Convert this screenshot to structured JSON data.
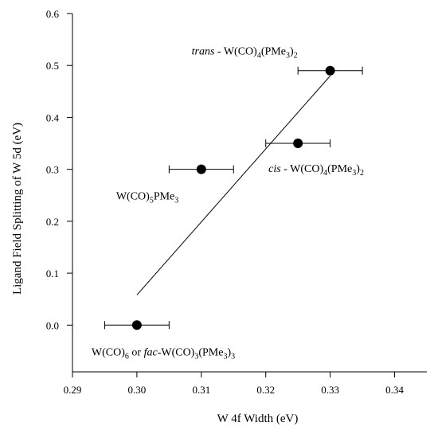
{
  "chart_data": {
    "type": "scatter",
    "xlabel": "W 4f Width (eV)",
    "ylabel": "Ligand Field Splitting of W 5d (eV)",
    "xlim": [
      0.29,
      0.345
    ],
    "ylim": [
      -0.09,
      0.6
    ],
    "xticks": [
      "0.29",
      "0.30",
      "0.31",
      "0.32",
      "0.33",
      "0.34"
    ],
    "yticks": [
      "0.0",
      "0.1",
      "0.2",
      "0.3",
      "0.4",
      "0.5",
      "0.6"
    ],
    "grid": false,
    "points": [
      {
        "x": 0.3,
        "y": 0.0,
        "xerr": 0.005
      },
      {
        "x": 0.31,
        "y": 0.3,
        "xerr": 0.005
      },
      {
        "x": 0.325,
        "y": 0.35,
        "xerr": 0.005
      },
      {
        "x": 0.33,
        "y": 0.49,
        "xerr": 0.005
      }
    ],
    "fit_line": {
      "x": [
        0.3,
        0.33
      ],
      "y": [
        0.058,
        0.48
      ]
    },
    "annotations": {
      "trans": {
        "italic": "trans",
        "parts": [
          " - W(CO)",
          "4",
          "(PMe",
          "3",
          ")",
          "2"
        ]
      },
      "cis": {
        "italic": "cis",
        "parts": [
          " - W(CO)",
          "4",
          "(PMe",
          "3",
          ")",
          "2"
        ]
      },
      "wco5": {
        "parts": [
          "W(CO)",
          "5",
          "PMe",
          "3"
        ]
      },
      "wco6": {
        "parts": [
          "W(CO)",
          "6",
          " or "
        ],
        "italic": "fac",
        "parts2": [
          "-W(CO)",
          "3",
          "(PMe",
          "3",
          ")",
          "3"
        ]
      }
    }
  }
}
